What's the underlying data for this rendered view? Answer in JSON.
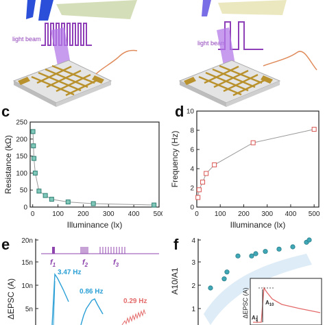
{
  "panels": {
    "a": {
      "beam_label": "light beam"
    },
    "b": {
      "beam_label": "light beam"
    },
    "c": {
      "label": "c"
    },
    "d": {
      "label": "d"
    },
    "e": {
      "label": "e",
      "f1": "f",
      "f1_sub": "1",
      "f2": "f",
      "f2_sub": "2",
      "f3": "f",
      "f3_sub": "3",
      "ann1": "3.47 Hz",
      "ann2": "0.86 Hz",
      "ann3": "0.29 Hz"
    },
    "f": {
      "label": "f",
      "inset_ylabel": "ΔEPSC (A)",
      "inset_a1": "A",
      "inset_a1_sub": "1",
      "inset_a10": "A",
      "inset_a10_sub": "10"
    }
  },
  "colors": {
    "axis": "#222222",
    "green_marker": "#3aa59a",
    "red_marker": "#d9534f",
    "purple": "#8e44ad",
    "teal_ann": "#2a9fd6",
    "orange_curve": "#e08a5a",
    "pink_ann": "#e46a6a",
    "scatter": "#3fa7b5"
  },
  "chart_data": [
    {
      "type": "scatter",
      "id": "c",
      "xlabel": "Illuminance (lx)",
      "ylabel": "Resistance (kΩ)",
      "xlim": [
        -10,
        500
      ],
      "ylim": [
        0,
        250
      ],
      "xticks": [
        0,
        100,
        200,
        300,
        400,
        500
      ],
      "yticks": [
        0,
        50,
        100,
        150,
        200,
        250
      ],
      "x": [
        1,
        3,
        5,
        10,
        25,
        50,
        75,
        140,
        240,
        480
      ],
      "y": [
        222,
        180,
        143,
        100,
        47,
        34,
        23,
        15,
        10,
        6
      ],
      "fit": true
    },
    {
      "type": "scatter",
      "id": "d",
      "xlabel": "Illuminance (lx)",
      "ylabel": "Frequency (Hz)",
      "xlim": [
        0,
        520
      ],
      "ylim": [
        0,
        10
      ],
      "xticks": [
        0,
        100,
        200,
        300,
        400,
        500
      ],
      "yticks": [
        0,
        2,
        4,
        6,
        8,
        10
      ],
      "x": [
        5,
        10,
        25,
        40,
        75,
        240,
        500
      ],
      "y": [
        1.0,
        1.8,
        2.6,
        3.5,
        4.4,
        6.7,
        8.1
      ],
      "fit": true
    },
    {
      "type": "line",
      "id": "e",
      "ylabel": "ΔEPSC (A)",
      "yticks": [
        "20n",
        "15n",
        "10n",
        "5n"
      ]
    },
    {
      "type": "scatter",
      "id": "f",
      "ylabel": "A10/A1",
      "yticks": [
        4,
        3,
        2,
        1
      ],
      "points": [
        [
          1,
          1.9
        ],
        [
          2,
          2.3
        ],
        [
          2.2,
          2.6
        ],
        [
          3,
          3.3
        ],
        [
          4,
          3.3
        ],
        [
          4.3,
          3.4
        ],
        [
          5,
          3.5
        ],
        [
          6,
          3.6
        ],
        [
          7,
          3.7
        ],
        [
          8,
          3.9
        ],
        [
          8.2,
          4.0
        ]
      ]
    }
  ]
}
